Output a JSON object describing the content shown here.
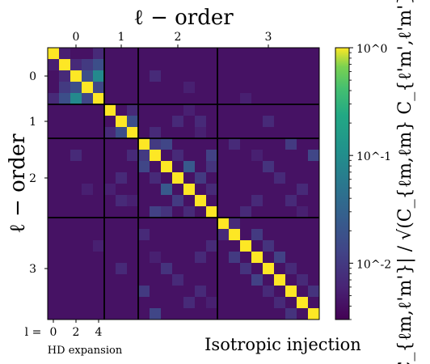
{
  "chart_data": {
    "type": "heatmap",
    "x_label_top": "ℓ − order",
    "y_label_left": "ℓ − order",
    "ell_tick_labels": [
      "0",
      "1",
      "2",
      "3"
    ],
    "block_sizes": [
      5,
      3,
      7,
      9
    ],
    "colorbar": {
      "label": "|C_{ℓm,ℓ'm'}| / √(C_{ℓm,ℓm} C_{ℓ'm',ℓ'm'})",
      "scale": "log",
      "range": [
        0.003,
        1
      ],
      "tick_values": [
        1,
        0.1,
        0.01
      ],
      "tick_labels": [
        "10^0",
        "10^-1",
        "10^-2"
      ],
      "colormap": "viridis"
    },
    "background_level": 0.004,
    "off_diagonal_entries": [
      [
        1,
        2,
        0.006
      ],
      [
        1,
        3,
        0.008
      ],
      [
        1,
        4,
        0.012
      ],
      [
        2,
        3,
        0.012
      ],
      [
        2,
        4,
        0.045
      ],
      [
        3,
        4,
        0.01
      ],
      [
        0,
        4,
        0.006
      ],
      [
        1,
        0,
        0.005
      ],
      [
        6,
        7,
        0.012
      ],
      [
        5,
        7,
        0.006
      ],
      [
        8,
        9,
        0.008
      ],
      [
        8,
        10,
        0.01
      ],
      [
        9,
        11,
        0.006
      ],
      [
        10,
        12,
        0.015
      ],
      [
        11,
        13,
        0.008
      ],
      [
        12,
        14,
        0.006
      ],
      [
        9,
        14,
        0.009
      ],
      [
        10,
        14,
        0.007
      ],
      [
        15,
        16,
        0.006
      ],
      [
        16,
        18,
        0.008
      ],
      [
        17,
        19,
        0.007
      ],
      [
        18,
        20,
        0.009
      ],
      [
        19,
        21,
        0.006
      ],
      [
        20,
        22,
        0.006
      ],
      [
        21,
        23,
        0.007
      ],
      [
        2,
        9,
        0.006
      ],
      [
        3,
        12,
        0.005
      ],
      [
        5,
        12,
        0.005
      ],
      [
        6,
        11,
        0.006
      ],
      [
        7,
        9,
        0.006
      ],
      [
        6,
        13,
        0.006
      ],
      [
        8,
        21,
        0.008
      ],
      [
        10,
        19,
        0.007
      ],
      [
        9,
        23,
        0.01
      ],
      [
        12,
        22,
        0.006
      ],
      [
        13,
        18,
        0.006
      ],
      [
        4,
        17,
        0.005
      ],
      [
        8,
        16,
        0.006
      ],
      [
        9,
        18,
        0.005
      ],
      [
        11,
        20,
        0.006
      ],
      [
        14,
        17,
        0.006
      ],
      [
        7,
        13,
        0.005
      ],
      [
        6,
        19,
        0.006
      ],
      [
        13,
        21,
        0.006
      ],
      [
        14,
        22,
        0.005
      ]
    ],
    "x_bottom_prefix": "l =",
    "x_bottom_ticks": [
      "0",
      "2",
      "4"
    ],
    "x_bottom_caption": "HD expansion",
    "annotation": "Isotropic injection"
  }
}
